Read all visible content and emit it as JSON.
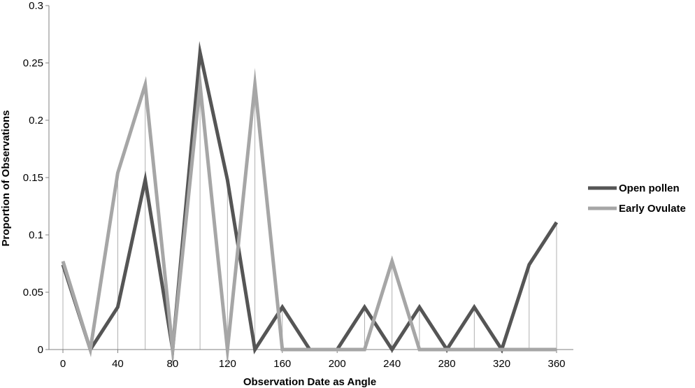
{
  "chart_data": {
    "type": "line",
    "title": "",
    "xlabel": "Observation Date as Angle",
    "ylabel": "Proportion of  Observations",
    "xlim": [
      0,
      360
    ],
    "ylim": [
      0,
      0.3
    ],
    "xticks": [
      0,
      40,
      80,
      120,
      160,
      200,
      240,
      280,
      320,
      360
    ],
    "xtick_labels": [
      "0",
      "40",
      "80",
      "120",
      "160",
      "200",
      "240",
      "280",
      "320",
      "360"
    ],
    "yticks": [
      0,
      0.05,
      0.1,
      0.15,
      0.2,
      0.25,
      0.3
    ],
    "ytick_labels": [
      "0",
      "0.05",
      "0.1",
      "0.15",
      "0.2",
      "0.25",
      "0.3"
    ],
    "grid": false,
    "legend_position": "right",
    "drop_lines": [
      0,
      20,
      40,
      60,
      80,
      100,
      120,
      140,
      160,
      220,
      240,
      260,
      300,
      340,
      360
    ],
    "series": [
      {
        "name": "Open pollen",
        "color": "#555555",
        "x": [
          0,
          20,
          40,
          60,
          80,
          100,
          120,
          140,
          160,
          180,
          200,
          220,
          240,
          260,
          280,
          300,
          320,
          340,
          360
        ],
        "y": [
          0.074,
          0,
          0.037,
          0.148,
          0,
          0.259,
          0.148,
          0,
          0.037,
          0,
          0,
          0.037,
          0,
          0.037,
          0,
          0.037,
          0,
          0.074,
          0.111
        ]
      },
      {
        "name": "Early Ovulate",
        "color": "#a6a6a6",
        "x": [
          0,
          20,
          40,
          60,
          80,
          100,
          120,
          140,
          160,
          180,
          200,
          220,
          240,
          260,
          280,
          300,
          320,
          340,
          360
        ],
        "y": [
          0.077,
          0,
          0.154,
          0.231,
          0,
          0.231,
          0,
          0.231,
          0,
          0,
          0,
          0,
          0.077,
          0,
          0,
          0,
          0,
          0,
          0
        ]
      }
    ]
  }
}
